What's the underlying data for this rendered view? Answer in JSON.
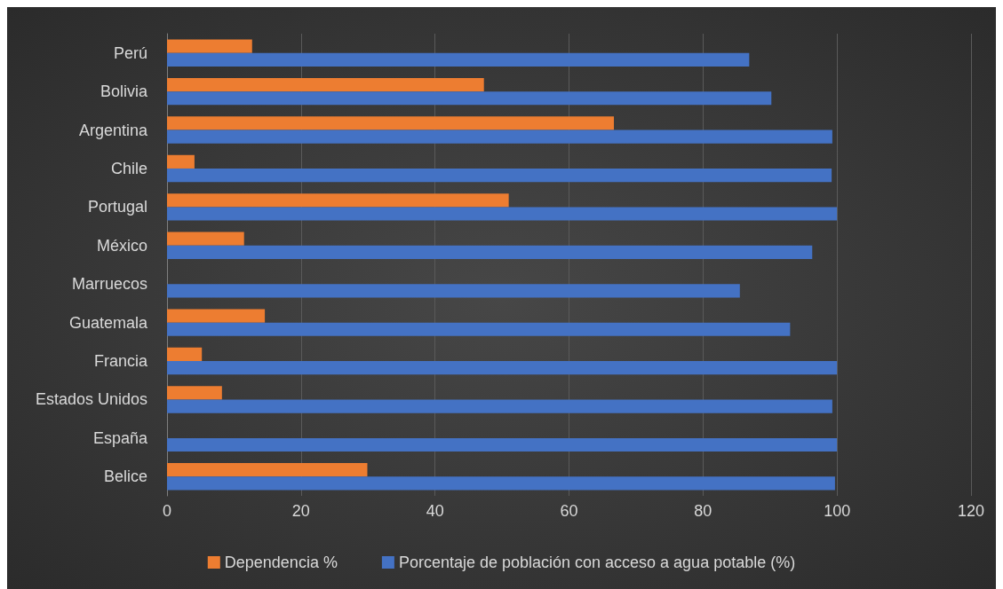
{
  "chart_data": {
    "type": "bar",
    "orientation": "horizontal",
    "categories": [
      "Perú",
      "Bolivia",
      "Argentina",
      "Chile",
      "Portugal",
      "México",
      "Marruecos",
      "Guatemala",
      "Francia",
      "Estados Unidos",
      "España",
      "Belice"
    ],
    "series": [
      {
        "name": "Dependencia %",
        "color": "#ed7d31",
        "values": [
          12.7,
          47.3,
          66.7,
          4.1,
          51,
          11.5,
          null,
          14.6,
          5.2,
          8.2,
          null,
          29.9
        ]
      },
      {
        "name": "Porcentaje de población con acceso a agua potable (%)",
        "color": "#4472c4",
        "values": [
          86.9,
          90.2,
          99.3,
          99.2,
          100,
          96.3,
          85.5,
          93,
          100,
          99.3,
          100,
          99.7
        ]
      }
    ],
    "xlim": [
      0,
      120
    ],
    "xticks": [
      0,
      20,
      40,
      60,
      80,
      100,
      120
    ],
    "grid": "x",
    "legend": "bottom"
  }
}
